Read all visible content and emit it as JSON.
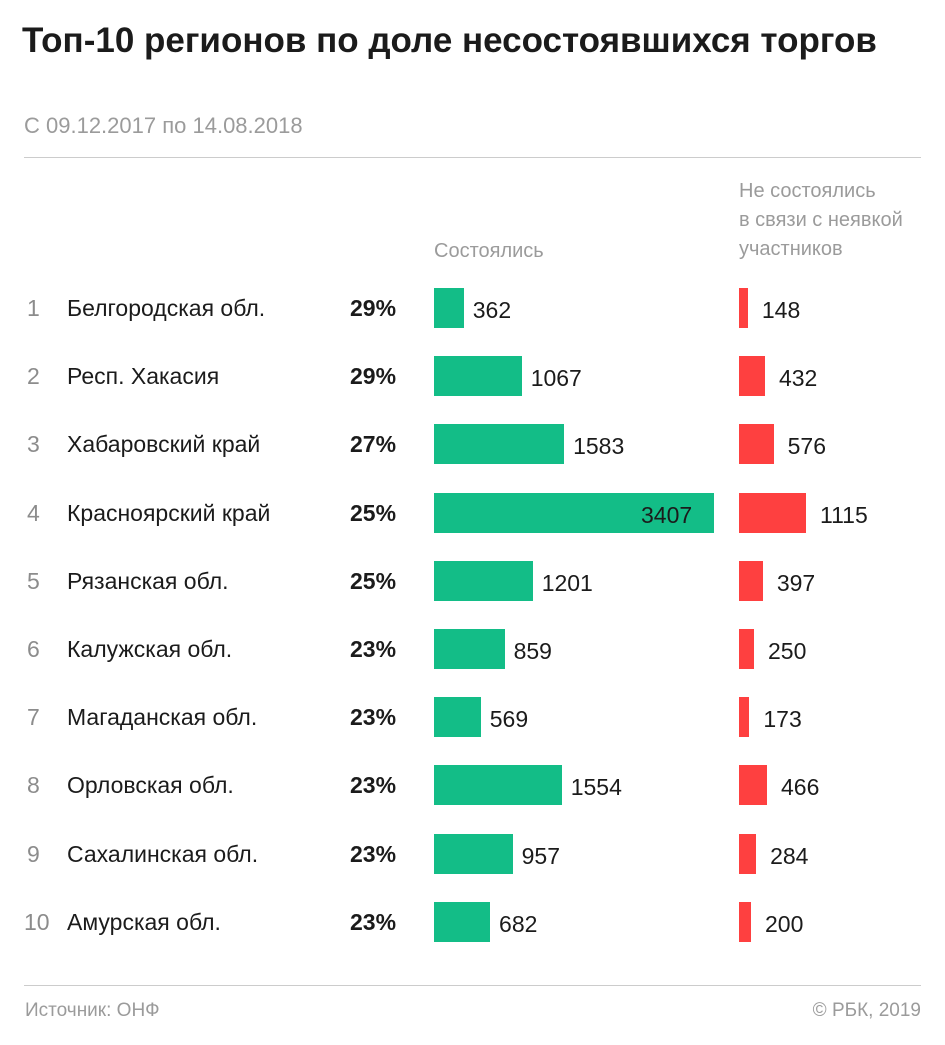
{
  "title": "Топ-10 регионов по доле несостоявшихся торгов",
  "subtitle": "С 09.12.2017 по 14.08.2018",
  "footer": {
    "source": "Источник: ОНФ",
    "copyright": "© РБК, 2019"
  },
  "chart_data": {
    "type": "bar",
    "title": "Топ-10 регионов по доле несостоявшихся торгов",
    "subtitle": "С 09.12.2017 по 14.08.2018",
    "orientation": "horizontal",
    "categories": [
      "Белгородская обл.",
      "Респ. Хакасия",
      "Хабаровский край",
      "Красноярский край",
      "Рязанская обл.",
      "Калужская обл.",
      "Магаданская обл.",
      "Орловская обл.",
      "Сахалинская обл.",
      "Амурская обл."
    ],
    "ranks": [
      "1",
      "2",
      "3",
      "4",
      "5",
      "6",
      "7",
      "8",
      "9",
      "10"
    ],
    "share_labels": [
      "29%",
      "29%",
      "27%",
      "25%",
      "25%",
      "23%",
      "23%",
      "23%",
      "23%",
      "23%"
    ],
    "series": [
      {
        "name": "Состоялись",
        "color": "#13bd87",
        "values": [
          362,
          1067,
          1583,
          3407,
          1201,
          859,
          569,
          1554,
          957,
          682
        ]
      },
      {
        "name": "Не состоялись в связи с неявкой участников",
        "color": "#fe4040",
        "values": [
          148,
          432,
          576,
          1115,
          397,
          250,
          173,
          466,
          284,
          200
        ]
      }
    ],
    "series_headers": {
      "held": "Состоялись",
      "failed": [
        "Не состоялись",
        "в связи с неявкой",
        "участников"
      ]
    },
    "grid": false,
    "legend": "column headers above bars"
  }
}
